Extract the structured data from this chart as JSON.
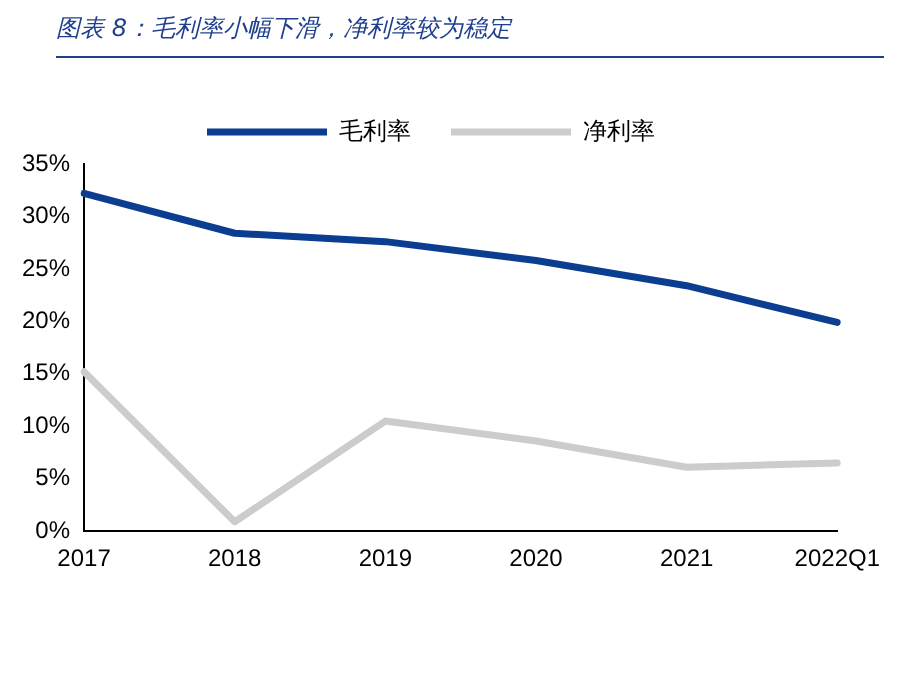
{
  "chart_data": {
    "type": "line",
    "title": "图表 8：毛利率小幅下滑，净利率较为稳定",
    "categories": [
      "2017",
      "2018",
      "2019",
      "2020",
      "2021",
      "2022Q1"
    ],
    "series": [
      {
        "name": "毛利率",
        "color": "#0b3d91",
        "values": [
          32.2,
          28.4,
          27.6,
          25.8,
          23.4,
          19.9
        ]
      },
      {
        "name": "净利率",
        "color": "#cccccc",
        "values": [
          15.2,
          0.9,
          10.5,
          8.6,
          6.1,
          6.5
        ]
      }
    ],
    "ylim": [
      0,
      35
    ],
    "yticks": [
      {
        "value": 0,
        "label": "0%"
      },
      {
        "value": 5,
        "label": "5%"
      },
      {
        "value": 10,
        "label": "10%"
      },
      {
        "value": 15,
        "label": "15%"
      },
      {
        "value": 20,
        "label": "20%"
      },
      {
        "value": 25,
        "label": "25%"
      },
      {
        "value": 30,
        "label": "30%"
      },
      {
        "value": 35,
        "label": "35%"
      }
    ],
    "grid": false,
    "legend": "top",
    "marker": "none",
    "line_style": "solid"
  }
}
